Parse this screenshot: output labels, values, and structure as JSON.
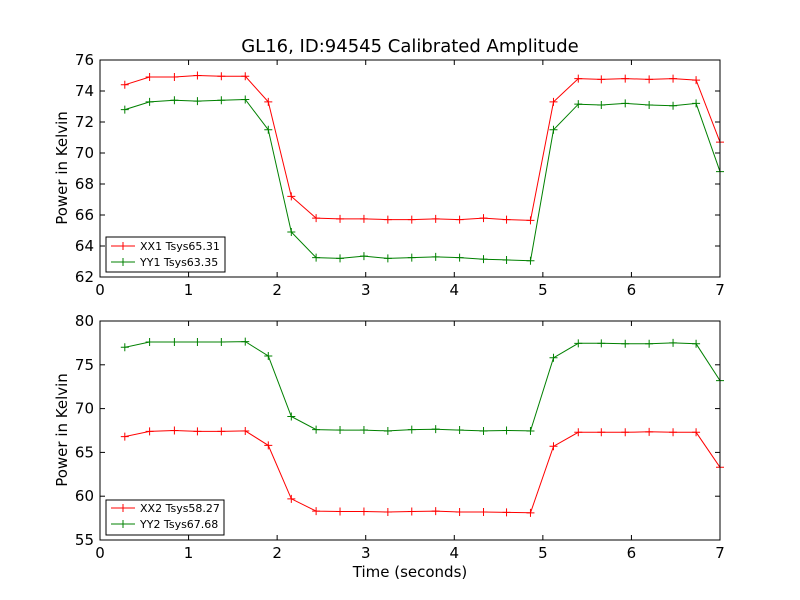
{
  "chart_data": [
    {
      "type": "line",
      "title": "GL16, ID:94545 Calibrated Amplitude",
      "xlabel": "",
      "ylabel": "Power in Kelvin",
      "xlim": [
        0,
        7
      ],
      "ylim": [
        62,
        76
      ],
      "xticks": [
        0,
        1,
        2,
        3,
        4,
        5,
        6,
        7
      ],
      "yticks": [
        62,
        64,
        66,
        68,
        70,
        72,
        74,
        76
      ],
      "grid": false,
      "legend_position": "lower-left",
      "x": [
        0.28,
        0.56,
        0.84,
        1.1,
        1.37,
        1.64,
        1.9,
        2.16,
        2.44,
        2.71,
        2.98,
        3.25,
        3.52,
        3.79,
        4.06,
        4.33,
        4.59,
        4.86,
        5.12,
        5.4,
        5.66,
        5.93,
        6.2,
        6.47,
        6.73,
        7.0
      ],
      "series": [
        {
          "name": "XX1 Tsys65.31",
          "color": "#ff0000",
          "values": [
            74.4,
            74.9,
            74.9,
            75.0,
            74.95,
            74.95,
            73.3,
            67.2,
            65.8,
            65.75,
            65.75,
            65.7,
            65.7,
            65.75,
            65.7,
            65.8,
            65.7,
            65.65,
            73.3,
            74.8,
            74.75,
            74.8,
            74.75,
            74.8,
            74.7,
            70.7
          ]
        },
        {
          "name": "YY1 Tsys63.35",
          "color": "#008000",
          "values": [
            72.8,
            73.3,
            73.4,
            73.35,
            73.4,
            73.45,
            71.5,
            64.9,
            63.25,
            63.2,
            63.35,
            63.2,
            63.25,
            63.3,
            63.25,
            63.15,
            63.1,
            63.05,
            71.5,
            73.15,
            73.1,
            73.2,
            73.1,
            73.05,
            73.2,
            68.8
          ]
        }
      ]
    },
    {
      "type": "line",
      "title": "",
      "xlabel": "Time (seconds)",
      "ylabel": "Power in Kelvin",
      "xlim": [
        0,
        7
      ],
      "ylim": [
        55,
        80
      ],
      "xticks": [
        0,
        1,
        2,
        3,
        4,
        5,
        6,
        7
      ],
      "yticks": [
        55,
        60,
        65,
        70,
        75,
        80
      ],
      "grid": false,
      "legend_position": "lower-left",
      "x": [
        0.28,
        0.56,
        0.84,
        1.1,
        1.37,
        1.64,
        1.9,
        2.16,
        2.44,
        2.71,
        2.98,
        3.25,
        3.52,
        3.79,
        4.06,
        4.33,
        4.59,
        4.86,
        5.12,
        5.4,
        5.66,
        5.93,
        6.2,
        6.47,
        6.73,
        7.0
      ],
      "series": [
        {
          "name": "XX2 Tsys58.27",
          "color": "#ff0000",
          "values": [
            66.8,
            67.4,
            67.5,
            67.4,
            67.4,
            67.45,
            65.8,
            59.7,
            58.3,
            58.25,
            58.25,
            58.2,
            58.25,
            58.3,
            58.2,
            58.2,
            58.15,
            58.1,
            65.7,
            67.3,
            67.3,
            67.3,
            67.35,
            67.3,
            67.3,
            63.3
          ]
        },
        {
          "name": "YY2 Tsys67.68",
          "color": "#008000",
          "values": [
            77.0,
            77.6,
            77.6,
            77.6,
            77.6,
            77.65,
            76.0,
            69.1,
            67.6,
            67.55,
            67.55,
            67.45,
            67.6,
            67.65,
            67.55,
            67.45,
            67.5,
            67.45,
            75.8,
            77.45,
            77.45,
            77.4,
            77.4,
            77.5,
            77.4,
            73.2
          ]
        }
      ]
    }
  ]
}
